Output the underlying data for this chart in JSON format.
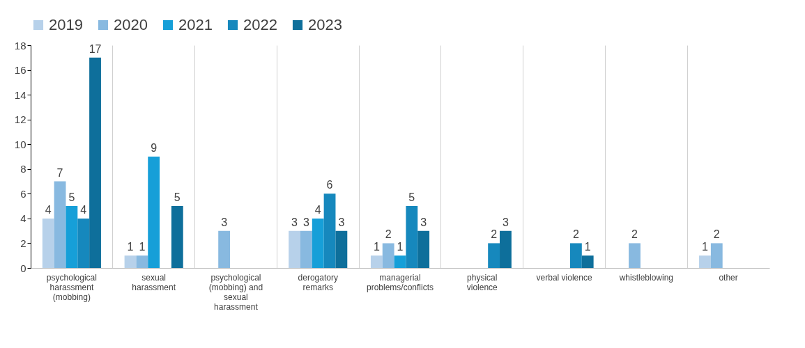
{
  "chart_data": {
    "type": "bar",
    "categories": [
      "psychological harassment (mobbing)",
      "sexual harassment",
      "psychological (mobbing) and sexual harassment",
      "derogatory remarks",
      "managerial problems/conflicts",
      "physical violence",
      "verbal violence",
      "whistleblowing",
      "other"
    ],
    "series": [
      {
        "name": "2019",
        "color": "#b7d1ea",
        "values": [
          4,
          1,
          null,
          3,
          1,
          null,
          null,
          null,
          1
        ]
      },
      {
        "name": "2020",
        "color": "#88b9e0",
        "values": [
          7,
          1,
          3,
          3,
          2,
          null,
          null,
          2,
          2
        ]
      },
      {
        "name": "2021",
        "color": "#169fd8",
        "values": [
          5,
          9,
          null,
          4,
          1,
          null,
          null,
          null,
          null
        ]
      },
      {
        "name": "2022",
        "color": "#1688bd",
        "values": [
          4,
          null,
          null,
          6,
          5,
          2,
          2,
          null,
          null
        ]
      },
      {
        "name": "2023",
        "color": "#0e6f9b",
        "values": [
          17,
          5,
          null,
          3,
          3,
          3,
          1,
          null,
          null
        ]
      }
    ],
    "ylim": [
      0,
      18
    ],
    "yticks": [
      0,
      2,
      4,
      6,
      8,
      10,
      12,
      14,
      16,
      18
    ],
    "grid": "x",
    "legend": "top",
    "data_labels": true
  }
}
